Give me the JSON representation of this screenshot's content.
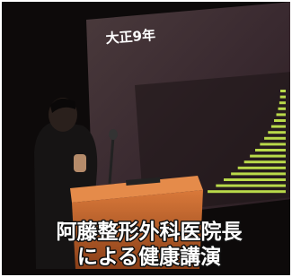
{
  "slide": {
    "title": "大正9年"
  },
  "caption": {
    "lines": [
      "阿藤整形外科医院長",
      "による健康講演"
    ]
  }
}
